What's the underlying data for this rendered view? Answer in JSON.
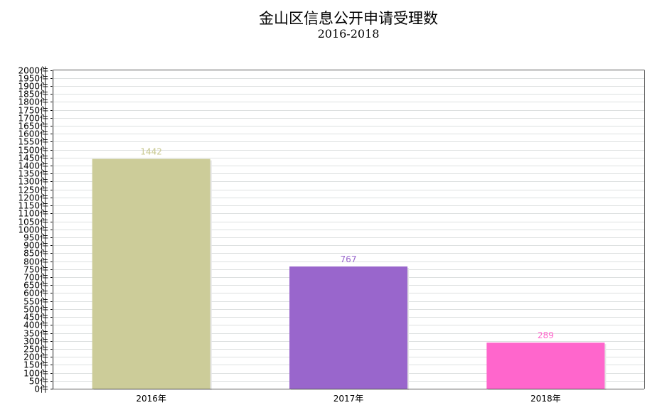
{
  "chart_data": {
    "type": "bar",
    "title": "金山区信息公开申请受理数",
    "subtitle": "2016-2018",
    "categories": [
      "2016年",
      "2017年",
      "2018年"
    ],
    "values": [
      1442,
      767,
      289
    ],
    "value_labels": [
      "1442",
      "767",
      "289"
    ],
    "colors": [
      "#CCCC99",
      "#9966CC",
      "#FF66CC"
    ],
    "label_colors": [
      "#C8C890",
      "#9966CC",
      "#FF66CC"
    ],
    "ylim": [
      0,
      2000
    ],
    "ytick_step": 50,
    "ytick_suffix": "件",
    "xlabel": "",
    "ylabel": "",
    "grid": true,
    "legend": "none"
  }
}
